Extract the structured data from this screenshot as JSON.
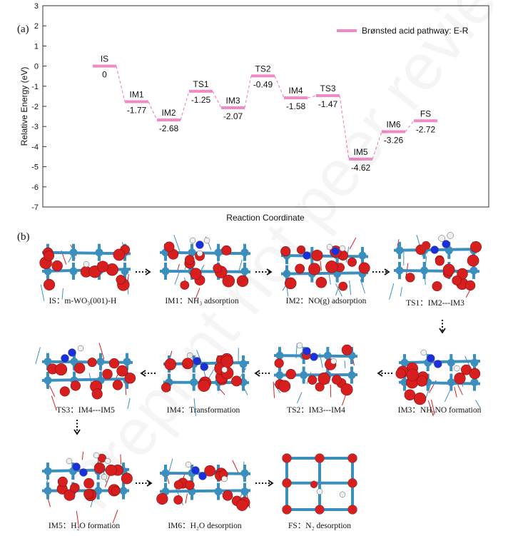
{
  "panel_a_label": "(a)",
  "panel_b_label": "(b)",
  "chart_data": {
    "type": "line",
    "legend": "Brønsted acid pathway: E-R",
    "legend_position": "top-right",
    "ylabel": "Relative Energy (eV)",
    "xlabel": "Reaction Coordinate",
    "ylim": [
      -7,
      3
    ],
    "yticks": [
      "3",
      "2",
      "1",
      "0",
      "-1",
      "-2",
      "-3",
      "-4",
      "-5",
      "-6",
      "-7"
    ],
    "series_color": "#f08ac7",
    "states": [
      {
        "name": "IS",
        "value": 0,
        "value_label": "0"
      },
      {
        "name": "IM1",
        "value": -1.77,
        "value_label": "-1.77"
      },
      {
        "name": "IM2",
        "value": -2.68,
        "value_label": "-2.68"
      },
      {
        "name": "TS1",
        "value": -1.25,
        "value_label": "-1.25"
      },
      {
        "name": "IM3",
        "value": -2.07,
        "value_label": "-2.07"
      },
      {
        "name": "TS2",
        "value": -0.49,
        "value_label": "-0.49"
      },
      {
        "name": "IM4",
        "value": -1.58,
        "value_label": "-1.58"
      },
      {
        "name": "TS3",
        "value": -1.47,
        "value_label": "-1.47"
      },
      {
        "name": "IM5",
        "value": -4.62,
        "value_label": "-4.62"
      },
      {
        "name": "IM6",
        "value": -3.26,
        "value_label": "-3.26"
      },
      {
        "name": "FS",
        "value": -2.72,
        "value_label": "-2.72"
      }
    ]
  },
  "panel_b": {
    "captions": [
      "IS：m-WO₃(001)-H",
      "IM1：NH₃ adsorption",
      "IM2：NO(g) adsorption",
      "TS1：IM2---IM3",
      "TS3：IM4---IM5",
      "IM4：Transformation",
      "TS2：IM3---IM4",
      "IM3：NH₂NO formation",
      "IM5：H₂O formation",
      "IM6：H₂O desorption",
      "FS：N₂ desorption"
    ]
  },
  "watermark": "Preprint not peer reviewed"
}
